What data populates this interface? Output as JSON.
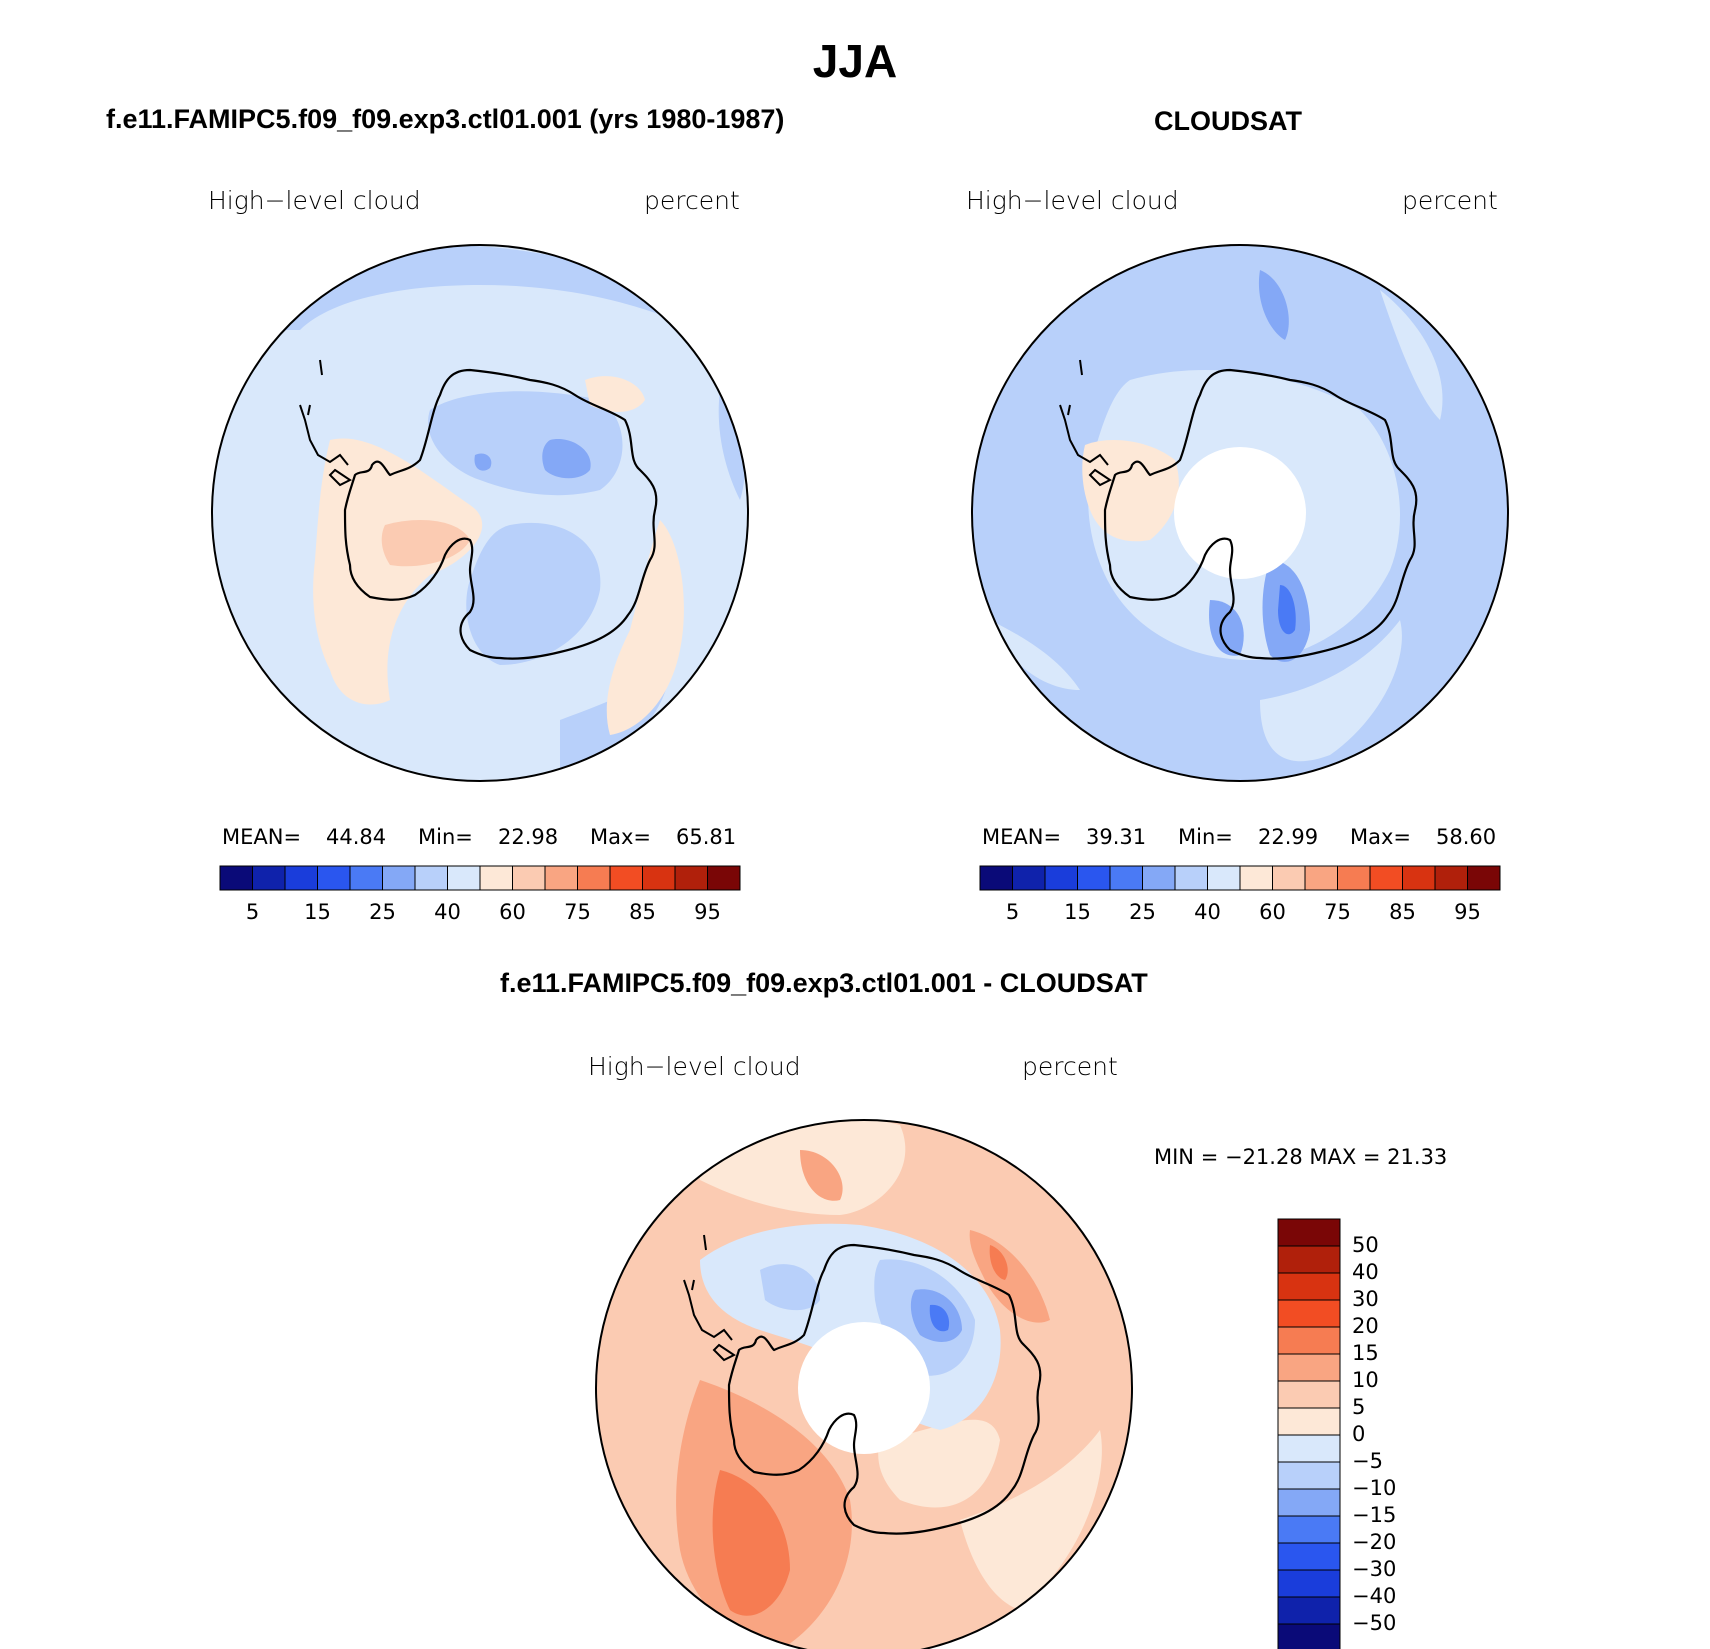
{
  "figure": {
    "title": "JJA"
  },
  "panels": [
    {
      "title": "f.e11.FAMIPC5.f09_f09.exp3.ctl01.001 (yrs 1980-1987)",
      "variable": "High−level cloud",
      "units": "percent",
      "stats": {
        "mean_label": "MEAN=",
        "mean": "44.84",
        "min_label": "Min=",
        "min": "22.98",
        "max_label": "Max=",
        "max": "65.81"
      }
    },
    {
      "title": "CLOUDSAT",
      "variable": "High−level cloud",
      "units": "percent",
      "stats": {
        "mean_label": "MEAN=",
        "mean": "39.31",
        "min_label": "Min=",
        "min": "22.99",
        "max_label": "Max=",
        "max": "58.60"
      }
    },
    {
      "title": "f.e11.FAMIPC5.f09_f09.exp3.ctl01.001 - CLOUDSAT",
      "variable": "High−level cloud",
      "units": "percent",
      "minmax_text": "MIN = −21.28 MAX =  21.33"
    }
  ],
  "colorbar_top": {
    "colors": [
      "#0a0a78",
      "#0f22ab",
      "#1a3ddb",
      "#2a56ef",
      "#4a7af5",
      "#84a8f6",
      "#b8d0fa",
      "#d9e8fb",
      "#fde8d7",
      "#fbcbb2",
      "#f9a582",
      "#f67c52",
      "#f24d23",
      "#d83311",
      "#b0200b",
      "#7a0606"
    ],
    "labels": [
      "5",
      "15",
      "25",
      "40",
      "60",
      "75",
      "85",
      "95"
    ]
  },
  "colorbar_diff": {
    "colors_top_to_bottom": [
      "#7a0606",
      "#b0200b",
      "#d83311",
      "#f24d23",
      "#f67c52",
      "#f9a582",
      "#fbcbb2",
      "#fde8d7",
      "#d9e8fb",
      "#b8d0fa",
      "#84a8f6",
      "#4a7af5",
      "#2a56ef",
      "#1a3ddb",
      "#0f22ab",
      "#0a0a78"
    ],
    "labels": [
      "50",
      "40",
      "30",
      "20",
      "15",
      "10",
      "5",
      "0",
      "−5",
      "−10",
      "−15",
      "−20",
      "−30",
      "−40",
      "−50"
    ]
  }
}
